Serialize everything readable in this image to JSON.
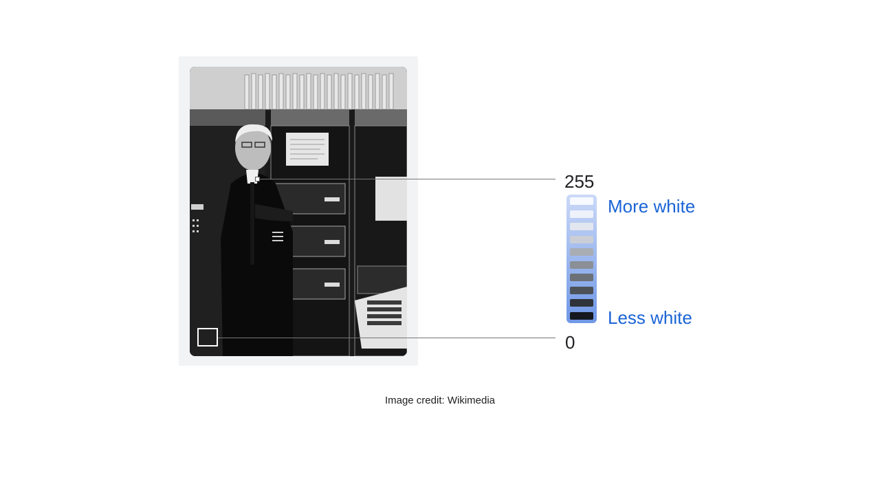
{
  "scale": {
    "max_value": "255",
    "min_value": "0",
    "more_label": "More white",
    "less_label": "Less white",
    "swatch_colors": [
      "#f6f9ff",
      "#eef2fa",
      "#e2e6ee",
      "#cbced6",
      "#a9adb4",
      "#8b8f96",
      "#6c7077",
      "#4d5158",
      "#2f333a",
      "#15181e"
    ],
    "label_color": "#1a64d6"
  },
  "credit": {
    "key": "Image credit:",
    "source": "Wikimedia"
  },
  "photo": {
    "subject": "black-and-white photo of person in naval uniform beside computer equipment"
  }
}
